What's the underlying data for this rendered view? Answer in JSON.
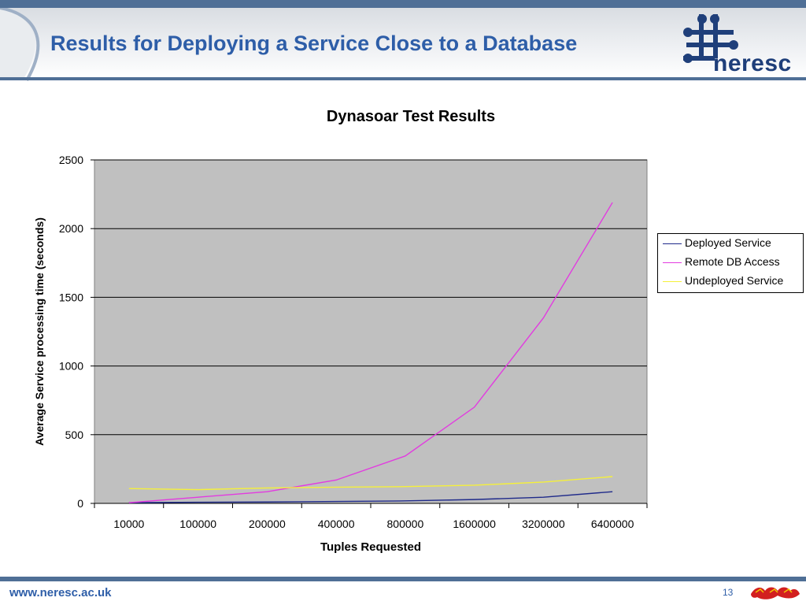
{
  "slide": {
    "title": "Results for Deploying a Service Close to a Database",
    "logo_text": "neresc",
    "footer_url": "www.neresc.ac.uk",
    "page_number": "13"
  },
  "colors": {
    "band": "#4f6f96",
    "title": "#2e5ea8",
    "plot_background": "#c0c0c0",
    "deployed": "#1f2a8a",
    "remote": "#e23be0",
    "undeployed": "#f5f03a"
  },
  "chart_data": {
    "type": "line",
    "title": "Dynasoar Test Results",
    "xlabel": "Tuples Requested",
    "ylabel": "Average Service processing time (seconds)",
    "ylim": [
      0,
      2500
    ],
    "yticks": [
      "0",
      "500",
      "1000",
      "1500",
      "2000",
      "2500"
    ],
    "categories": [
      "10000",
      "100000",
      "200000",
      "400000",
      "800000",
      "1600000",
      "3200000",
      "6400000"
    ],
    "grid": true,
    "legend_position": "right",
    "series": [
      {
        "name": "Deployed Service",
        "color": "#1f2a8a",
        "values": [
          5,
          8,
          10,
          14,
          18,
          28,
          45,
          85
        ]
      },
      {
        "name": "Remote DB Access",
        "color": "#e23be0",
        "values": [
          5,
          45,
          85,
          170,
          345,
          700,
          1350,
          2190
        ]
      },
      {
        "name": "Undeployed Service",
        "color": "#f5f03a",
        "values": [
          108,
          100,
          112,
          118,
          122,
          132,
          155,
          195
        ]
      }
    ]
  }
}
